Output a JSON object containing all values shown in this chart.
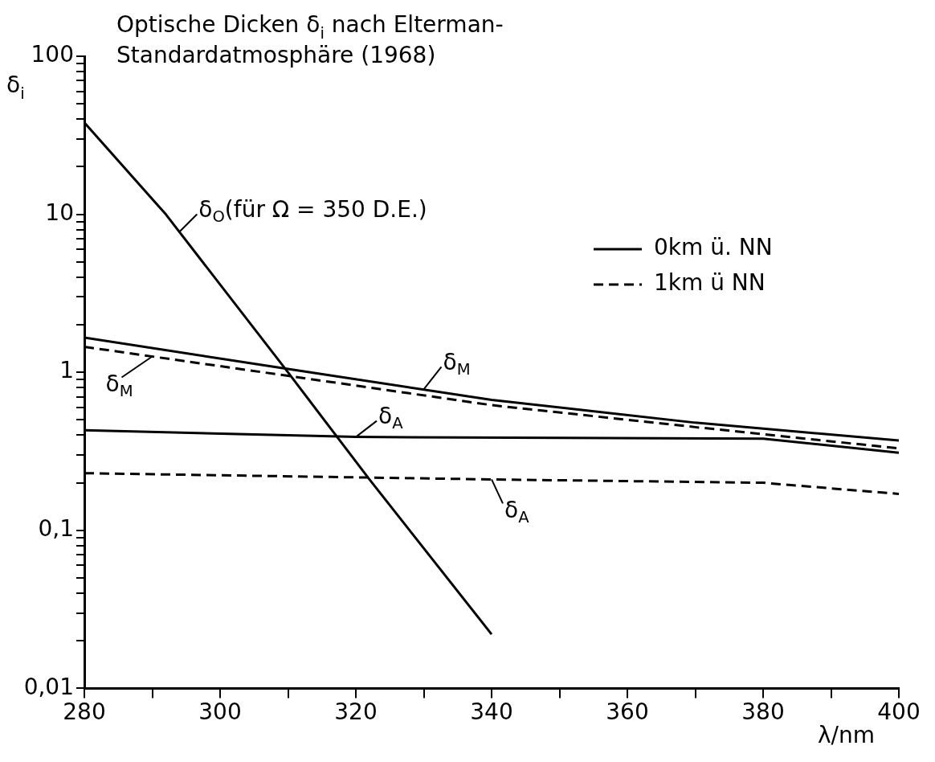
{
  "chart_data": {
    "type": "line",
    "title": "Optische Dicken δ$_{i}$ nach Elterman-\nStandardatmosphäre (1968)",
    "xlabel": "λ/nm",
    "ylabel": "δ$_{i}$",
    "log": "y",
    "grid": false,
    "legend": "top right",
    "marker": "none",
    "xlim": [
      280,
      400
    ],
    "xticks": [
      280,
      {
        "value": 290,
        "label": null
      },
      300,
      {
        "value": 310,
        "label": null
      },
      320,
      {
        "value": 330,
        "label": null
      },
      340,
      {
        "value": 350,
        "label": null
      },
      360,
      {
        "value": 370,
        "label": null
      },
      380,
      {
        "value": 390,
        "label": null
      },
      400
    ],
    "ylim": [
      0.01,
      100
    ],
    "yticks": [
      {
        "value": 0.01,
        "label": "0,01"
      },
      {
        "value": 0.02,
        "label": null
      },
      {
        "value": 0.03,
        "label": null
      },
      {
        "value": 0.04,
        "label": null
      },
      {
        "value": 0.05,
        "label": null
      },
      {
        "value": 0.06,
        "label": null
      },
      {
        "value": 0.07,
        "label": null
      },
      {
        "value": 0.08,
        "label": null
      },
      {
        "value": 0.09,
        "label": null
      },
      {
        "value": 0.1,
        "label": "0,1"
      },
      {
        "value": 0.2,
        "label": null
      },
      {
        "value": 0.3,
        "label": null
      },
      {
        "value": 0.4,
        "label": null
      },
      {
        "value": 0.5,
        "label": null
      },
      {
        "value": 0.6,
        "label": null
      },
      {
        "value": 0.7,
        "label": null
      },
      {
        "value": 0.8,
        "label": null
      },
      {
        "value": 0.9,
        "label": null
      },
      1,
      {
        "value": 2,
        "label": null
      },
      {
        "value": 3,
        "label": null
      },
      {
        "value": 4,
        "label": null
      },
      {
        "value": 5,
        "label": null
      },
      {
        "value": 6,
        "label": null
      },
      {
        "value": 7,
        "label": null
      },
      {
        "value": 8,
        "label": null
      },
      {
        "value": 9,
        "label": null
      },
      10,
      {
        "value": 20,
        "label": null
      },
      {
        "value": 30,
        "label": null
      },
      {
        "value": 40,
        "label": null
      },
      {
        "value": 50,
        "label": null
      },
      {
        "value": 60,
        "label": null
      },
      {
        "value": 70,
        "label": null
      },
      {
        "value": 80,
        "label": null
      },
      {
        "value": 90,
        "label": null
      },
      100
    ],
    "series": [
      {
        "name": "0km ü. NN",
        "color": "#000000",
        "line_style": "solid",
        "x": [
          280,
          310,
          340,
          370,
          400
        ],
        "values": [
          1.66,
          1.05,
          0.67,
          0.48,
          0.37
        ]
      },
      {
        "name": "1km ü NN",
        "color": "#000000",
        "line_style": "dashed",
        "x": [
          280,
          310,
          340,
          370,
          400
        ],
        "values": [
          1.45,
          0.95,
          0.62,
          0.45,
          0.33
        ]
      },
      {
        "color": "#000000",
        "line_style": "solid",
        "x": [
          280,
          292,
          310,
          322,
          340
        ],
        "values": [
          38,
          10,
          1,
          0.21,
          0.022
        ]
      },
      {
        "color": "#000000",
        "line_style": "solid",
        "x": [
          280,
          320,
          380,
          400
        ],
        "values": [
          0.43,
          0.39,
          0.38,
          0.31
        ]
      },
      {
        "color": "#000000",
        "line_style": "dashed",
        "x": [
          280,
          340,
          380,
          400
        ],
        "values": [
          0.23,
          0.21,
          0.2,
          0.17
        ]
      }
    ],
    "annotations": [
      {
        "text": "δ$_{O}$(für Ω = 350 D.E.)",
        "x": 294,
        "y": 7.74
      },
      {
        "text": "δ$_{M}$",
        "x": 330,
        "y": 0.78
      },
      {
        "text": "δ$_{M}$",
        "x": 290,
        "y": 1.26
      },
      {
        "text": "δ$_{A}$",
        "x": 320,
        "y": 0.39
      },
      {
        "text": "δ$_{A}$",
        "x": 340,
        "y": 0.21
      }
    ]
  }
}
